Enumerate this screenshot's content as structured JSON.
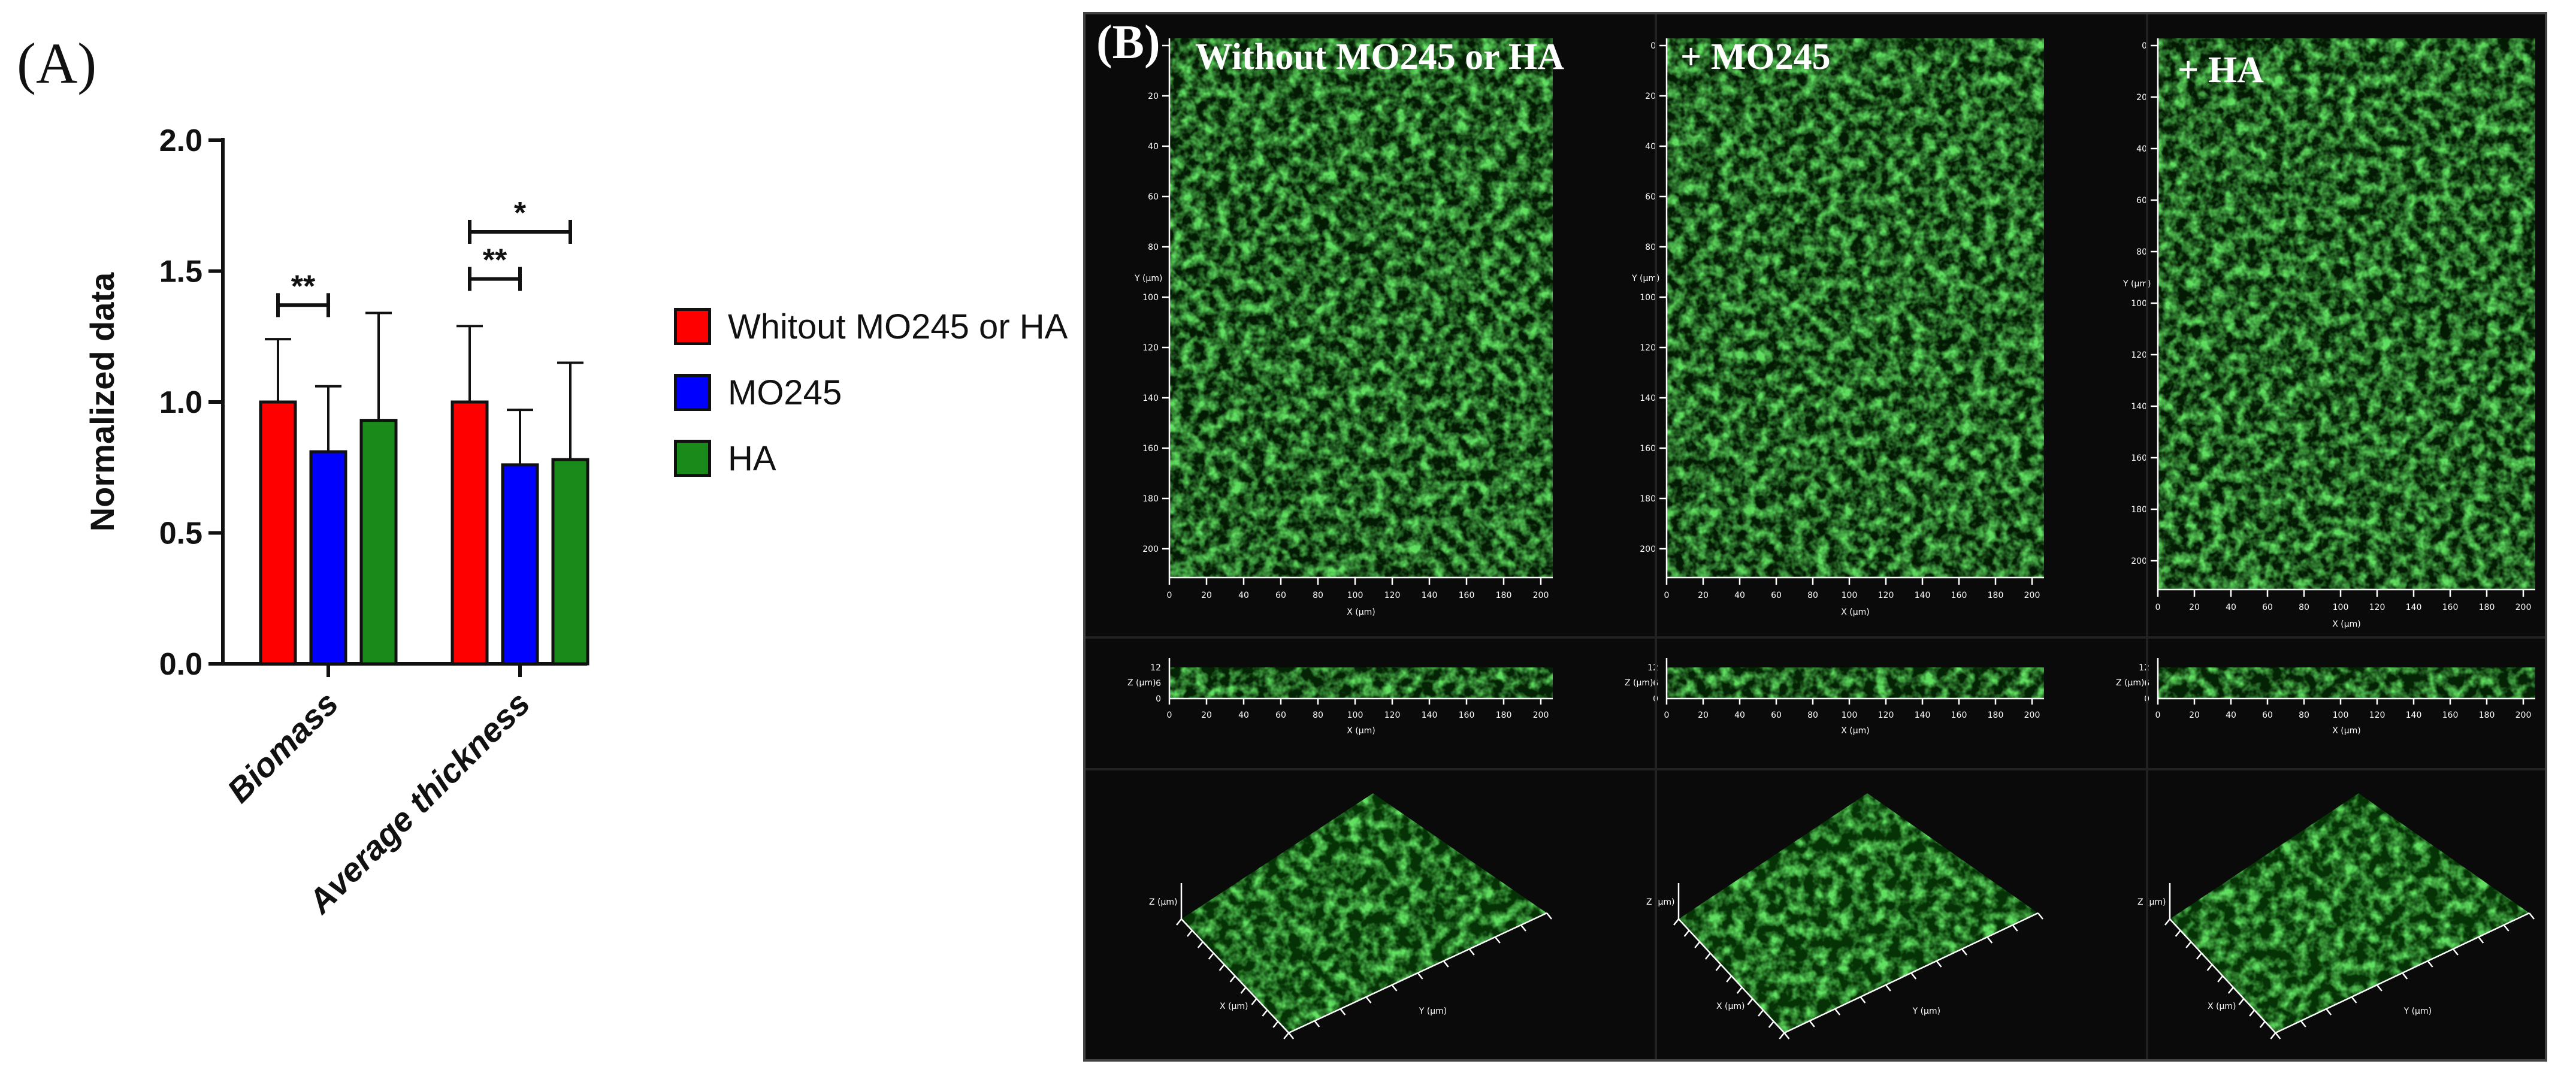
{
  "panel_a": {
    "label": "(A)"
  },
  "panel_b": {
    "label": "(B)",
    "conditions": [
      "Without MO245 or HA",
      "+ MO245",
      "+ HA"
    ],
    "xy_axis": {
      "x_label": "X (µm)",
      "y_label": "Y (µm)",
      "x_ticks": [
        "0",
        "20",
        "40",
        "60",
        "80",
        "100",
        "120",
        "140",
        "160",
        "180",
        "200"
      ],
      "y_ticks": [
        "0",
        "20",
        "40",
        "60",
        "80",
        "100",
        "120",
        "140",
        "160",
        "180",
        "200"
      ]
    },
    "xz_axis": {
      "x_label": "X (µm)",
      "z_label": "Z (µm)",
      "z_ticks": [
        "0",
        "6",
        "12"
      ]
    },
    "view_3d": {
      "x_label": "X (µm)",
      "y_label": "Y (µm)",
      "z_label": "Z (µm)"
    }
  },
  "colors": {
    "without": "#ff0000",
    "mo245": "#0000ff",
    "ha": "#1a8a1a",
    "fluorescence": "#2fd12f"
  },
  "chart_data": {
    "type": "bar",
    "categories": [
      "Biomass",
      "Average thickness"
    ],
    "ylabel": "Normalized data",
    "ylim": [
      0,
      2.0
    ],
    "yticks": [
      "0.0",
      "0.5",
      "1.0",
      "1.5",
      "2.0"
    ],
    "series": [
      {
        "name": "Whitout MO245 or HA",
        "values": [
          1.0,
          1.0
        ],
        "errors": [
          0.24,
          0.29
        ]
      },
      {
        "name": "MO245",
        "values": [
          0.81,
          0.76
        ],
        "errors": [
          0.25,
          0.21
        ]
      },
      {
        "name": "HA",
        "values": [
          0.93,
          0.78
        ],
        "errors": [
          0.41,
          0.37
        ]
      }
    ],
    "significance": [
      {
        "category": "Biomass",
        "from": 0,
        "to": 1,
        "y": 1.37,
        "label": "**"
      },
      {
        "category": "Average thickness",
        "from": 0,
        "to": 1,
        "y": 1.47,
        "label": "**"
      },
      {
        "category": "Average thickness",
        "from": 0,
        "to": 2,
        "y": 1.65,
        "label": "*"
      }
    ],
    "legend_position": "right"
  }
}
